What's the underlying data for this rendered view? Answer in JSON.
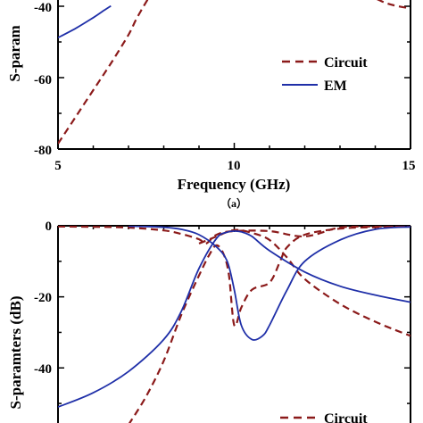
{
  "colors": {
    "circuit": "#8b1a1a",
    "em": "#1f2fa8",
    "axis": "#000000"
  },
  "chart_data": [
    {
      "type": "line",
      "caption": "（a）",
      "xlabel": "Frequency (GHz)",
      "ylabel": "S-param",
      "xlim": [
        5,
        15
      ],
      "ylim": [
        -80,
        -40
      ],
      "x_ticks": [
        "5",
        "10",
        "15"
      ],
      "y_ticks": [
        "-40",
        "-60",
        "-80"
      ],
      "legend": {
        "placement": "right",
        "entries": [
          "Circuit",
          "EM"
        ]
      },
      "series": [
        {
          "name": "Circuit",
          "style": "dashed",
          "x": [
            5,
            5.5,
            6,
            6.5,
            7,
            7.2,
            7.4,
            7.55
          ],
          "y": [
            -78.5,
            -71,
            -63.5,
            -56,
            -48,
            -44,
            -40.5,
            -38
          ]
        },
        {
          "name": "EM",
          "style": "solid",
          "x": [
            5,
            5.5,
            6,
            6.3,
            6.5
          ],
          "y": [
            -48.8,
            -46.2,
            -43.2,
            -41.2,
            -39.9
          ]
        },
        {
          "name": "Circuit",
          "style": "dashed",
          "x": [
            14.05,
            14.3,
            14.6,
            15
          ],
          "y": [
            -38,
            -39.1,
            -39.9,
            -40.6
          ]
        }
      ]
    },
    {
      "type": "line",
      "ylabel": "S-paramters (dB)",
      "xlim": [
        5,
        15
      ],
      "ylim": [
        -55,
        0
      ],
      "y_ticks": [
        "0",
        "-20",
        "-40"
      ],
      "legend": {
        "placement": "bottom-right",
        "entries": [
          "Circuit"
        ]
      },
      "series": [
        {
          "name": "Circuit",
          "style": "dashed",
          "x": [
            5,
            6,
            7,
            8,
            8.5,
            9,
            9.2,
            9.5,
            10,
            11,
            12,
            13,
            14,
            15
          ],
          "y": [
            -0.2,
            -0.3,
            -0.5,
            -1.3,
            -2.3,
            -3.8,
            -5,
            -2.5,
            -1.5,
            -1.5,
            -3,
            -0.5,
            -0.2,
            -0.1
          ]
        },
        {
          "name": "Circuit",
          "style": "dashed",
          "x": [
            7,
            7.5,
            8,
            8.5,
            9,
            9.3,
            9.5,
            9.7,
            9.85,
            10,
            10.2,
            10.5,
            11,
            11.3,
            11.5,
            12,
            13,
            14,
            15
          ],
          "y": [
            -56,
            -48,
            -38,
            -25,
            -14,
            -8,
            -5.5,
            -8,
            -14,
            -28,
            -23,
            -18,
            -16,
            -10,
            -6,
            -2.5,
            -0.8,
            -0.4,
            -0.2
          ]
        },
        {
          "name": "Circuit",
          "style": "dashed",
          "x": [
            9,
            9.5,
            10,
            10.5,
            11,
            11.5,
            12,
            13,
            14,
            15
          ],
          "y": [
            -5,
            -3,
            -1.2,
            -2,
            -4,
            -9,
            -15,
            -22,
            -27,
            -31
          ]
        },
        {
          "name": "EM",
          "style": "solid",
          "x": [
            7,
            7.5,
            8,
            8.5,
            9,
            9.5,
            9.8,
            10,
            10.2,
            10.5,
            10.8,
            11,
            11.5,
            12,
            13,
            14,
            15
          ],
          "y": [
            -0.1,
            -0.2,
            -0.4,
            -1,
            -2.5,
            -6,
            -10,
            -18,
            -28,
            -32,
            -31,
            -28,
            -18,
            -10,
            -4,
            -1,
            -0.3
          ]
        },
        {
          "name": "EM",
          "style": "solid",
          "x": [
            5,
            6,
            7,
            8,
            8.5,
            9,
            9.5,
            9.8,
            10,
            10.2,
            10.5,
            11,
            12,
            13,
            14,
            15
          ],
          "y": [
            -51,
            -47,
            -41,
            -32,
            -24,
            -12,
            -3.5,
            -1.8,
            -1.5,
            -1.7,
            -3,
            -7,
            -13,
            -17,
            -19.5,
            -21.5
          ]
        }
      ]
    }
  ]
}
